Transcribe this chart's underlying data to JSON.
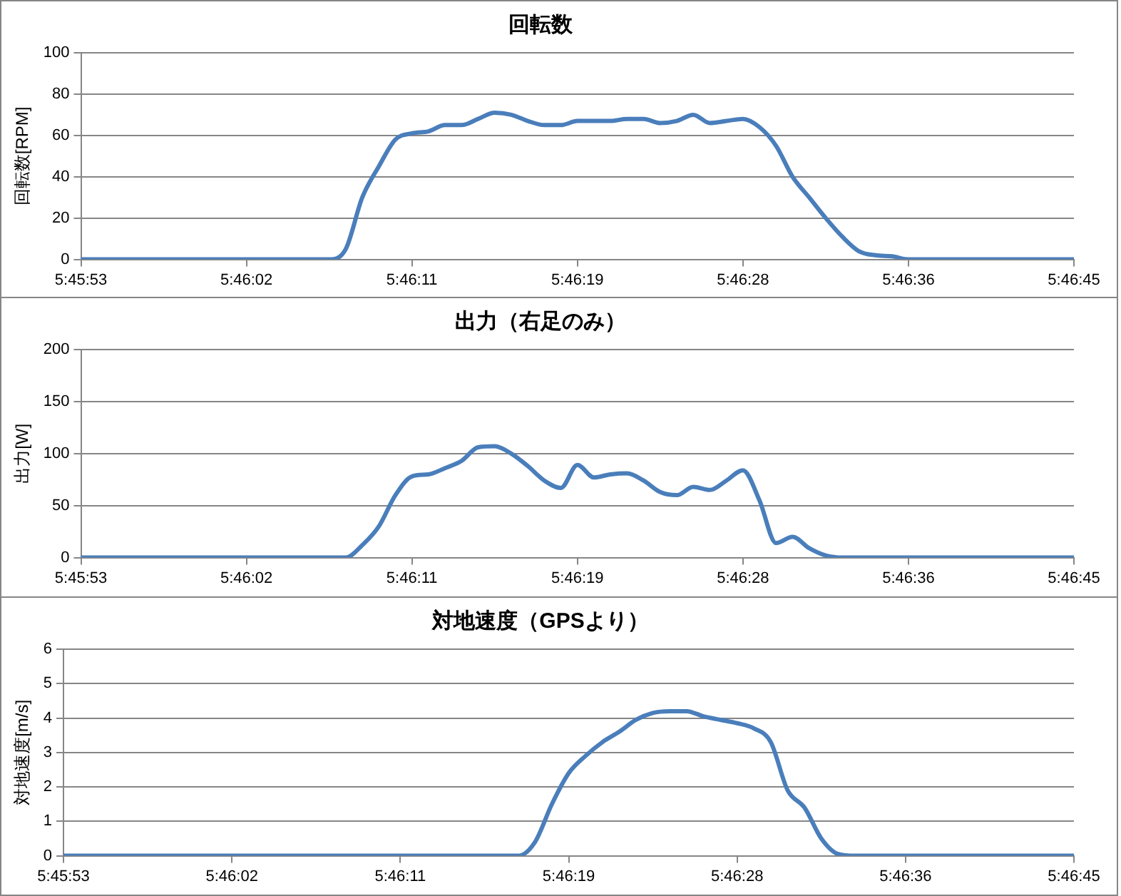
{
  "chart_data": [
    {
      "type": "line",
      "title": "回転数",
      "ylabel": "回転数[RPM]",
      "categories": [
        "5:45:53",
        null,
        null,
        null,
        null,
        null,
        null,
        null,
        null,
        null,
        "5:46:02",
        null,
        null,
        null,
        null,
        null,
        null,
        null,
        null,
        null,
        "5:46:11",
        null,
        null,
        null,
        null,
        null,
        null,
        null,
        null,
        null,
        "5:46:19",
        null,
        null,
        null,
        null,
        null,
        null,
        null,
        null,
        null,
        "5:46:28",
        null,
        null,
        null,
        null,
        null,
        null,
        null,
        null,
        null,
        "5:46:36",
        null,
        null,
        null,
        null,
        null,
        null,
        null,
        null,
        null,
        "5:46:45"
      ],
      "values": [
        0,
        0,
        0,
        0,
        0,
        0,
        0,
        0,
        0,
        0,
        0,
        0,
        0,
        0,
        0,
        0,
        5,
        30,
        45,
        58,
        61,
        62,
        65,
        65,
        68,
        71,
        70,
        67,
        65,
        65,
        67,
        67,
        67,
        68,
        68,
        66,
        67,
        70,
        66,
        67,
        68,
        64,
        55,
        40,
        30,
        20,
        11,
        4,
        2,
        1.5,
        0,
        0,
        0,
        0,
        0,
        0,
        0,
        0,
        0,
        0,
        0
      ],
      "color": "#4a7ebb",
      "ylim": [
        0,
        100
      ],
      "yticks": [
        0,
        20,
        40,
        60,
        80,
        100
      ],
      "grid": "y",
      "marker": "none"
    },
    {
      "type": "line",
      "title": "出力（右足のみ）",
      "ylabel": "出力[W]",
      "categories": [
        "5:45:53",
        null,
        null,
        null,
        null,
        null,
        null,
        null,
        null,
        null,
        "5:46:02",
        null,
        null,
        null,
        null,
        null,
        null,
        null,
        null,
        null,
        "5:46:11",
        null,
        null,
        null,
        null,
        null,
        null,
        null,
        null,
        null,
        "5:46:19",
        null,
        null,
        null,
        null,
        null,
        null,
        null,
        null,
        null,
        "5:46:28",
        null,
        null,
        null,
        null,
        null,
        null,
        null,
        null,
        null,
        "5:46:36",
        null,
        null,
        null,
        null,
        null,
        null,
        null,
        null,
        null,
        "5:46:45"
      ],
      "values": [
        0,
        0,
        0,
        0,
        0,
        0,
        0,
        0,
        0,
        0,
        0,
        0,
        0,
        0,
        0,
        0,
        0,
        12,
        30,
        60,
        78,
        80,
        86,
        93,
        106,
        107,
        100,
        88,
        74,
        67,
        89,
        77,
        80,
        81,
        74,
        63,
        60,
        68,
        65,
        74,
        84,
        55,
        14,
        20,
        9,
        2,
        0,
        0,
        0,
        0,
        0,
        0,
        0,
        0,
        0,
        0,
        0,
        0,
        0,
        0,
        0
      ],
      "color": "#4a7ebb",
      "ylim": [
        0,
        200
      ],
      "yticks": [
        0,
        50,
        100,
        150,
        200
      ],
      "grid": "y",
      "marker": "none"
    },
    {
      "type": "line",
      "title": "対地速度（GPSより）",
      "ylabel": "対地速度[m/s]",
      "categories": [
        "5:45:53",
        null,
        null,
        null,
        null,
        null,
        null,
        null,
        null,
        null,
        "5:46:02",
        null,
        null,
        null,
        null,
        null,
        null,
        null,
        null,
        null,
        "5:46:11",
        null,
        null,
        null,
        null,
        null,
        null,
        null,
        null,
        null,
        "5:46:19",
        null,
        null,
        null,
        null,
        null,
        null,
        null,
        null,
        null,
        "5:46:28",
        null,
        null,
        null,
        null,
        null,
        null,
        null,
        null,
        null,
        "5:46:36",
        null,
        null,
        null,
        null,
        null,
        null,
        null,
        null,
        null,
        "5:46:45"
      ],
      "values": [
        0,
        0,
        0,
        0,
        0,
        0,
        0,
        0,
        0,
        0,
        0,
        0,
        0,
        0,
        0,
        0,
        0,
        0,
        0,
        0,
        0,
        0,
        0,
        0,
        0,
        0,
        0,
        0,
        0.4,
        1.5,
        2.4,
        2.9,
        3.3,
        3.6,
        3.95,
        4.15,
        4.2,
        4.2,
        4.05,
        3.95,
        3.85,
        3.7,
        3.3,
        1.9,
        1.4,
        0.5,
        0.05,
        0,
        0,
        0,
        0,
        0,
        0,
        0,
        0,
        0,
        0,
        0,
        0,
        0,
        0
      ],
      "color": "#4a7ebb",
      "ylim": [
        0,
        6
      ],
      "yticks": [
        0,
        1,
        2,
        3,
        4,
        5,
        6
      ],
      "grid": "y",
      "marker": "none"
    }
  ]
}
